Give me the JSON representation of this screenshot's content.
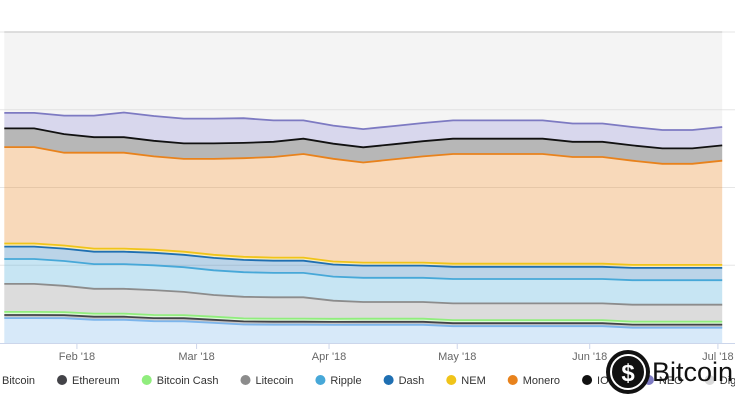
{
  "chart_data": {
    "type": "area",
    "stacking": "percent",
    "title": "",
    "xlabel": "",
    "ylabel": "",
    "ylim": [
      0,
      100
    ],
    "grid": true,
    "legend_position": "bottom",
    "x": [
      "2018-01-15",
      "2018-01-22",
      "2018-01-29",
      "2018-02-05",
      "2018-02-12",
      "2018-02-19",
      "2018-02-26",
      "2018-03-05",
      "2018-03-12",
      "2018-03-19",
      "2018-03-26",
      "2018-04-02",
      "2018-04-09",
      "2018-04-16",
      "2018-04-23",
      "2018-04-30",
      "2018-05-07",
      "2018-05-14",
      "2018-05-21",
      "2018-05-28",
      "2018-06-04",
      "2018-06-11",
      "2018-06-18",
      "2018-06-25",
      "2018-07-02"
    ],
    "x_ticks": [
      {
        "date": "2018-02-01",
        "label": "Feb '18"
      },
      {
        "date": "2018-03-01",
        "label": "Mar '18"
      },
      {
        "date": "2018-04-01",
        "label": "Apr '18"
      },
      {
        "date": "2018-05-01",
        "label": "May '18"
      },
      {
        "date": "2018-06-01",
        "label": "Jun '18"
      },
      {
        "date": "2018-07-01",
        "label": "Jul '18"
      }
    ],
    "series": [
      {
        "name": "Bitcoin",
        "color": "#7cb5ec",
        "values": [
          8,
          8,
          8,
          7.5,
          7.5,
          7,
          7,
          6.5,
          6,
          6,
          6,
          6,
          6,
          6,
          6,
          5.5,
          5.5,
          5.5,
          5.5,
          5.5,
          5.5,
          5,
          5,
          5,
          5
        ]
      },
      {
        "name": "Ethereum",
        "color": "#434348",
        "values": [
          1,
          1,
          1,
          1,
          1,
          1,
          1,
          1,
          1,
          1,
          1,
          1,
          1,
          1,
          1,
          1,
          1,
          1,
          1,
          1,
          1,
          1,
          1,
          1,
          1
        ]
      },
      {
        "name": "Bitcoin Cash",
        "color": "#90ed7d",
        "values": [
          1,
          1,
          1,
          1,
          1,
          1,
          1,
          1,
          1,
          1,
          1,
          1,
          1,
          1,
          1,
          1,
          1,
          1,
          1,
          1,
          1,
          1,
          1,
          1,
          1
        ]
      },
      {
        "name": "Litecoin",
        "color": "#8c8c8c",
        "values": [
          9,
          9,
          8.5,
          8,
          8,
          8,
          7.5,
          7,
          7,
          7,
          7,
          6,
          5.5,
          5.5,
          5.5,
          5.5,
          5.5,
          5.5,
          5.5,
          5.5,
          5.5,
          5.5,
          5.5,
          5.5,
          5.5
        ]
      },
      {
        "name": "Ripple",
        "color": "#47a8d8",
        "values": [
          8,
          8,
          8,
          8,
          8,
          8,
          8,
          8,
          8,
          8,
          8,
          8,
          8,
          8,
          8,
          8,
          8,
          8,
          8,
          8,
          8,
          8,
          8,
          8,
          8
        ]
      },
      {
        "name": "Dash",
        "color": "#1f6fb2",
        "values": [
          4,
          4,
          4,
          4,
          4,
          4,
          4,
          4,
          4,
          4,
          4,
          4,
          4,
          4,
          4,
          4,
          4,
          4,
          4,
          4,
          4,
          4,
          4,
          4,
          4
        ]
      },
      {
        "name": "NEM",
        "color": "#f0c419",
        "values": [
          1,
          1,
          1,
          1,
          1,
          1,
          1,
          1,
          1,
          1,
          1,
          1,
          1,
          1,
          1,
          1,
          1,
          1,
          1,
          1,
          1,
          1,
          1,
          1,
          1
        ]
      },
      {
        "name": "Monero",
        "color": "#e8821c",
        "values": [
          31,
          31,
          30,
          31,
          31,
          30,
          30,
          31,
          32,
          33,
          34,
          34,
          33,
          34,
          35,
          36,
          36,
          36,
          36,
          35,
          35,
          34,
          33,
          33,
          34
        ]
      },
      {
        "name": "IOTA",
        "color": "#111111",
        "values": [
          6,
          6,
          6,
          5,
          5,
          5,
          5,
          5,
          5,
          5,
          5,
          5,
          5,
          5,
          5,
          5,
          5,
          5,
          5,
          5,
          5,
          5,
          5,
          5,
          5
        ]
      },
      {
        "name": "NEO",
        "color": "#7d7ac2",
        "values": [
          5,
          5,
          6,
          7,
          8,
          8,
          8,
          8,
          8,
          7,
          6,
          6,
          6,
          6,
          6,
          6,
          6,
          6,
          6,
          6,
          6,
          6,
          6,
          6,
          6
        ]
      },
      {
        "name": "Digecoin",
        "color": "#d9d9d9",
        "values": [
          26,
          26,
          27,
          27,
          26,
          27,
          28,
          28,
          28,
          29,
          29,
          31,
          32,
          31,
          30,
          29,
          29,
          29,
          29,
          30,
          30,
          31,
          32,
          32,
          31
        ]
      }
    ]
  },
  "watermark": {
    "text": "Bitcoin"
  }
}
